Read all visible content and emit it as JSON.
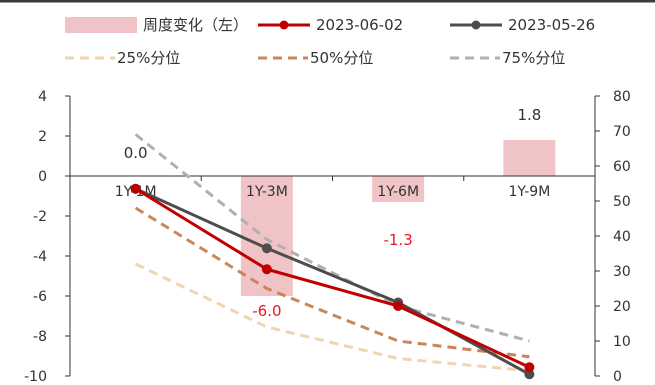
{
  "chart_data": {
    "type": "bar+line",
    "categories": [
      "1Y-1M",
      "1Y-3M",
      "1Y-6M",
      "1Y-9M"
    ],
    "left_axis": {
      "ylim": [
        -10,
        4
      ],
      "ticks": [
        "4",
        "2",
        "0",
        "-2",
        "-4",
        "-6",
        "-8",
        "-10"
      ]
    },
    "right_axis": {
      "ylim": [
        0,
        80
      ],
      "ticks": [
        "80",
        "70",
        "60",
        "50",
        "40",
        "30",
        "20",
        "10",
        "0"
      ]
    },
    "bars": {
      "name": "周度变化（左）",
      "axis": "left",
      "color": "#f0c4c6",
      "values": [
        0.0,
        -6.0,
        -1.3,
        1.8
      ],
      "labels": [
        "0.0",
        "-6.0",
        "-1.3",
        "1.8"
      ],
      "label_colors": [
        "#333333",
        "#e8191f",
        "#e8191f",
        "#333333"
      ]
    },
    "lines": [
      {
        "name": "2023-06-02",
        "axis": "right",
        "color": "#c00000",
        "style": "solid",
        "marker": true,
        "values": [
          53.5,
          30.5,
          20.0,
          2.5
        ]
      },
      {
        "name": "2023-05-26",
        "axis": "right",
        "color": "#4d4d4d",
        "style": "solid",
        "marker": true,
        "values": [
          53.5,
          36.5,
          21.0,
          0.5
        ]
      },
      {
        "name": "25%分位",
        "axis": "right",
        "color": "#f0d5b0",
        "style": "dashed",
        "marker": false,
        "values": [
          32.0,
          14.0,
          5.0,
          1.5
        ]
      },
      {
        "name": "50%分位",
        "axis": "right",
        "color": "#c8875a",
        "style": "dashed",
        "marker": false,
        "values": [
          48.0,
          25.0,
          10.0,
          5.5
        ]
      },
      {
        "name": "75%分位",
        "axis": "right",
        "color": "#b0b0b0",
        "style": "dashed",
        "marker": false,
        "values": [
          69.0,
          39.0,
          20.0,
          10.0
        ]
      }
    ],
    "legend": {
      "row1": [
        "周度变化（左）",
        "2023-06-02",
        "2023-05-26"
      ],
      "row2": [
        "25%分位",
        "50%分位",
        "75%分位"
      ]
    },
    "grid": false
  }
}
